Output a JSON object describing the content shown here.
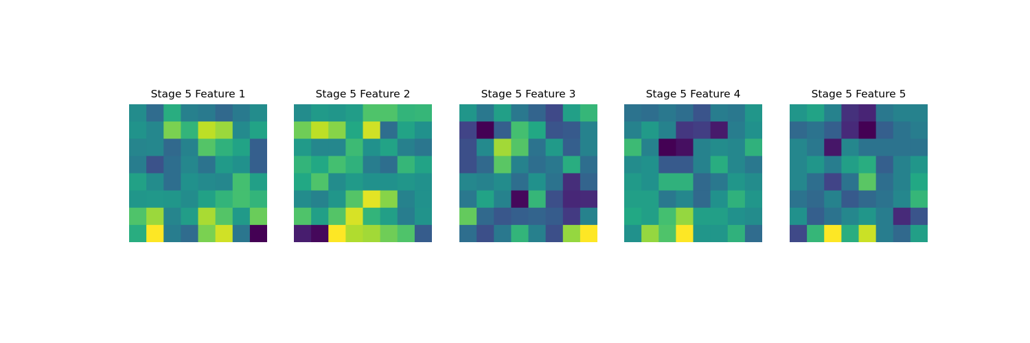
{
  "chart_data": [
    {
      "type": "heatmap",
      "title": "Stage 5 Feature 1",
      "colormap": "viridis",
      "values": [
        [
          0.48,
          0.35,
          0.62,
          0.43,
          0.41,
          0.34,
          0.41,
          0.48
        ],
        [
          0.51,
          0.46,
          0.8,
          0.65,
          0.9,
          0.85,
          0.47,
          0.58
        ],
        [
          0.45,
          0.46,
          0.34,
          0.44,
          0.73,
          0.64,
          0.58,
          0.3
        ],
        [
          0.42,
          0.25,
          0.36,
          0.46,
          0.38,
          0.54,
          0.5,
          0.3
        ],
        [
          0.57,
          0.48,
          0.36,
          0.5,
          0.47,
          0.46,
          0.7,
          0.56
        ],
        [
          0.52,
          0.53,
          0.52,
          0.48,
          0.57,
          0.65,
          0.7,
          0.65
        ],
        [
          0.72,
          0.85,
          0.45,
          0.55,
          0.87,
          0.73,
          0.54,
          0.77
        ],
        [
          0.62,
          1.0,
          0.42,
          0.35,
          0.8,
          0.93,
          0.39,
          0.0
        ]
      ]
    },
    {
      "type": "heatmap",
      "title": "Stage 5 Feature 2",
      "colormap": "viridis",
      "values": [
        [
          0.48,
          0.54,
          0.52,
          0.55,
          0.72,
          0.72,
          0.65,
          0.66
        ],
        [
          0.78,
          0.9,
          0.82,
          0.6,
          0.93,
          0.36,
          0.58,
          0.5
        ],
        [
          0.54,
          0.46,
          0.46,
          0.68,
          0.5,
          0.58,
          0.43,
          0.39
        ],
        [
          0.65,
          0.6,
          0.7,
          0.64,
          0.42,
          0.36,
          0.66,
          0.58
        ],
        [
          0.6,
          0.72,
          0.48,
          0.54,
          0.5,
          0.5,
          0.52,
          0.5
        ],
        [
          0.48,
          0.44,
          0.52,
          0.73,
          0.96,
          0.82,
          0.44,
          0.5
        ],
        [
          0.72,
          0.56,
          0.73,
          0.94,
          0.65,
          0.56,
          0.42,
          0.51
        ],
        [
          0.08,
          0.02,
          1.0,
          0.88,
          0.86,
          0.78,
          0.72,
          0.29
        ]
      ]
    },
    {
      "type": "heatmap",
      "title": "Stage 5 Feature 3",
      "colormap": "viridis",
      "values": [
        [
          0.52,
          0.4,
          0.56,
          0.4,
          0.32,
          0.22,
          0.56,
          0.66
        ],
        [
          0.2,
          0.0,
          0.3,
          0.7,
          0.6,
          0.26,
          0.28,
          0.44
        ],
        [
          0.24,
          0.47,
          0.86,
          0.73,
          0.38,
          0.54,
          0.3,
          0.44
        ],
        [
          0.24,
          0.34,
          0.74,
          0.44,
          0.36,
          0.4,
          0.62,
          0.36
        ],
        [
          0.46,
          0.44,
          0.48,
          0.36,
          0.5,
          0.38,
          0.13,
          0.32
        ],
        [
          0.4,
          0.58,
          0.44,
          0.02,
          0.66,
          0.24,
          0.11,
          0.12
        ],
        [
          0.76,
          0.34,
          0.27,
          0.3,
          0.32,
          0.29,
          0.17,
          0.44
        ],
        [
          0.36,
          0.24,
          0.4,
          0.65,
          0.43,
          0.24,
          0.84,
          1.0
        ]
      ]
    },
    {
      "type": "heatmap",
      "title": "Stage 5 Feature 4",
      "colormap": "viridis",
      "values": [
        [
          0.38,
          0.36,
          0.4,
          0.36,
          0.26,
          0.42,
          0.4,
          0.52
        ],
        [
          0.44,
          0.54,
          0.44,
          0.16,
          0.18,
          0.07,
          0.42,
          0.5
        ],
        [
          0.68,
          0.44,
          0.0,
          0.04,
          0.44,
          0.48,
          0.46,
          0.64
        ],
        [
          0.48,
          0.5,
          0.28,
          0.28,
          0.44,
          0.62,
          0.46,
          0.4
        ],
        [
          0.54,
          0.5,
          0.64,
          0.64,
          0.34,
          0.4,
          0.52,
          0.48
        ],
        [
          0.56,
          0.56,
          0.4,
          0.46,
          0.34,
          0.5,
          0.64,
          0.52
        ],
        [
          0.6,
          0.56,
          0.7,
          0.84,
          0.56,
          0.56,
          0.5,
          0.48
        ],
        [
          0.5,
          0.84,
          0.72,
          1.0,
          0.52,
          0.52,
          0.64,
          0.35
        ]
      ]
    },
    {
      "type": "heatmap",
      "title": "Stage 5 Feature 5",
      "colormap": "viridis",
      "values": [
        [
          0.52,
          0.58,
          0.44,
          0.14,
          0.1,
          0.4,
          0.44,
          0.44
        ],
        [
          0.34,
          0.38,
          0.3,
          0.12,
          0.0,
          0.3,
          0.38,
          0.42
        ],
        [
          0.46,
          0.4,
          0.06,
          0.46,
          0.38,
          0.38,
          0.38,
          0.38
        ],
        [
          0.46,
          0.52,
          0.42,
          0.56,
          0.62,
          0.3,
          0.44,
          0.52
        ],
        [
          0.46,
          0.36,
          0.2,
          0.38,
          0.74,
          0.36,
          0.44,
          0.6
        ],
        [
          0.38,
          0.34,
          0.44,
          0.28,
          0.34,
          0.38,
          0.46,
          0.66
        ],
        [
          0.5,
          0.3,
          0.38,
          0.46,
          0.52,
          0.42,
          0.12,
          0.26
        ],
        [
          0.22,
          0.66,
          1.0,
          0.62,
          0.92,
          0.42,
          0.34,
          0.56
        ]
      ]
    }
  ]
}
